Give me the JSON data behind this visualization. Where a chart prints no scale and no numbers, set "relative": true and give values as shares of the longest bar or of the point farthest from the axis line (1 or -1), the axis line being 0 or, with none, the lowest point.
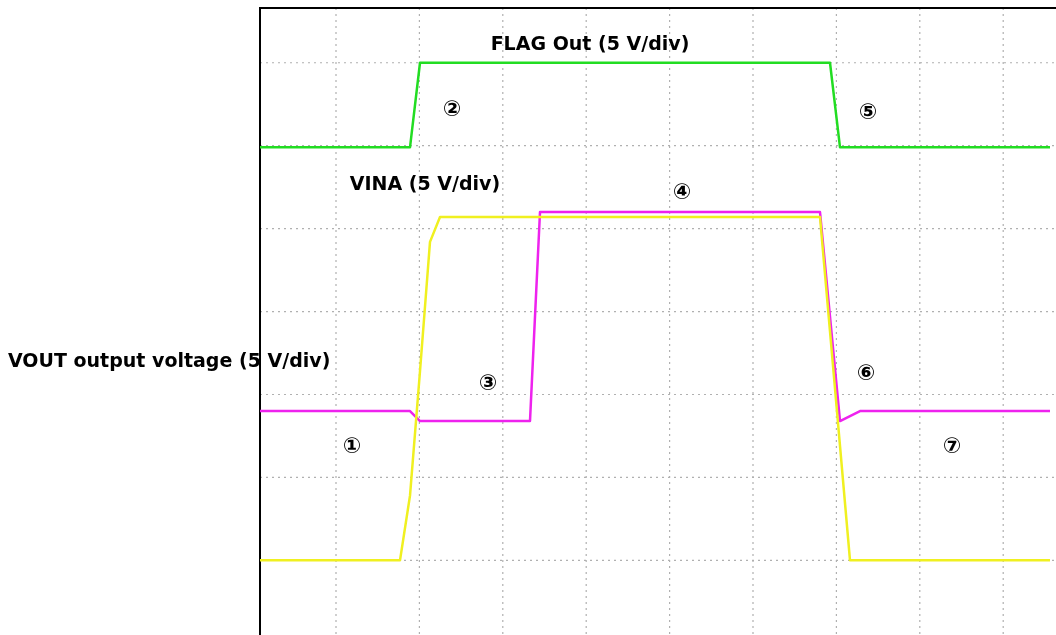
{
  "chart_data": {
    "type": "line",
    "relative": true,
    "grid": true,
    "legend": false,
    "marker": "none",
    "line_style": "solid",
    "categories": [
      null,
      null,
      null,
      null,
      null,
      null,
      null,
      null,
      null,
      null,
      null,
      null,
      null,
      null,
      null,
      null,
      null,
      null,
      null,
      null,
      null,
      null,
      null,
      null,
      null,
      null,
      null,
      null,
      null,
      null,
      null,
      null,
      null,
      null,
      null,
      null,
      null,
      null,
      null,
      null,
      null,
      null,
      null,
      null,
      null,
      null,
      null,
      null,
      null,
      null,
      null,
      null,
      null,
      null,
      null,
      null,
      null,
      null,
      null,
      null,
      null,
      null,
      null,
      null,
      null,
      null,
      null,
      null,
      null,
      null,
      null,
      null,
      null,
      null,
      null,
      null,
      null,
      null,
      null,
      null
    ],
    "series": [
      {
        "name": "FLAG Out (5 V/div)",
        "color": "#22dd22",
        "values": [
          0.83,
          0.83,
          0.83,
          0.83,
          0.83,
          0.83,
          0.83,
          0.83,
          0.83,
          0.83,
          0.83,
          0.83,
          0.83,
          0.83,
          0.83,
          0.83,
          1,
          1,
          1,
          1,
          1,
          1,
          1,
          1,
          1,
          1,
          1,
          1,
          1,
          1,
          1,
          1,
          1,
          1,
          1,
          1,
          1,
          1,
          1,
          1,
          1,
          1,
          1,
          1,
          1,
          1,
          1,
          1,
          1,
          1,
          1,
          1,
          1,
          1,
          1,
          1,
          1,
          1,
          0.83,
          0.83,
          0.83,
          0.83,
          0.83,
          0.83,
          0.83,
          0.83,
          0.83,
          0.83,
          0.83,
          0.83,
          0.83,
          0.83,
          0.83,
          0.83,
          0.83,
          0.83,
          0.83,
          0.83,
          0.83,
          0.83
        ]
      },
      {
        "name": "VINA (5 V/div)",
        "color": "#f0f020",
        "values": [
          0,
          0,
          0,
          0,
          0,
          0,
          0,
          0,
          0,
          0,
          0,
          0,
          0,
          0,
          0,
          0.13,
          0.38,
          0.64,
          0.69,
          0.69,
          0.69,
          0.69,
          0.69,
          0.69,
          0.69,
          0.69,
          0.69,
          0.69,
          0.69,
          0.69,
          0.69,
          0.69,
          0.69,
          0.69,
          0.69,
          0.69,
          0.69,
          0.69,
          0.69,
          0.69,
          0.69,
          0.69,
          0.69,
          0.69,
          0.69,
          0.69,
          0.69,
          0.69,
          0.69,
          0.69,
          0.69,
          0.69,
          0.69,
          0.69,
          0.69,
          0.69,
          0.69,
          0.46,
          0.23,
          0,
          0,
          0,
          0,
          0,
          0,
          0,
          0,
          0,
          0,
          0,
          0,
          0,
          0,
          0,
          0,
          0,
          0,
          0,
          0,
          0
        ]
      },
      {
        "name": "VOUT output voltage (5 V/div)",
        "color": "#ee22ee",
        "values": [
          0.3,
          0.3,
          0.3,
          0.3,
          0.3,
          0.3,
          0.3,
          0.3,
          0.3,
          0.3,
          0.3,
          0.3,
          0.3,
          0.3,
          0.3,
          0.3,
          0.28,
          0.28,
          0.28,
          0.28,
          0.28,
          0.28,
          0.28,
          0.28,
          0.28,
          0.28,
          0.28,
          0.28,
          0.7,
          0.7,
          0.7,
          0.7,
          0.7,
          0.7,
          0.7,
          0.7,
          0.7,
          0.7,
          0.7,
          0.7,
          0.7,
          0.7,
          0.7,
          0.7,
          0.7,
          0.7,
          0.7,
          0.7,
          0.7,
          0.7,
          0.7,
          0.7,
          0.7,
          0.7,
          0.7,
          0.7,
          0.7,
          0.49,
          0.28,
          0.29,
          0.3,
          0.3,
          0.3,
          0.3,
          0.3,
          0.3,
          0.3,
          0.3,
          0.3,
          0.3,
          0.3,
          0.3,
          0.3,
          0.3,
          0.3,
          0.3,
          0.3,
          0.3,
          0.3,
          0.3
        ]
      }
    ],
    "annotations": [
      "①",
      "②",
      "③",
      "④",
      "⑤",
      "⑥",
      "⑦"
    ]
  }
}
